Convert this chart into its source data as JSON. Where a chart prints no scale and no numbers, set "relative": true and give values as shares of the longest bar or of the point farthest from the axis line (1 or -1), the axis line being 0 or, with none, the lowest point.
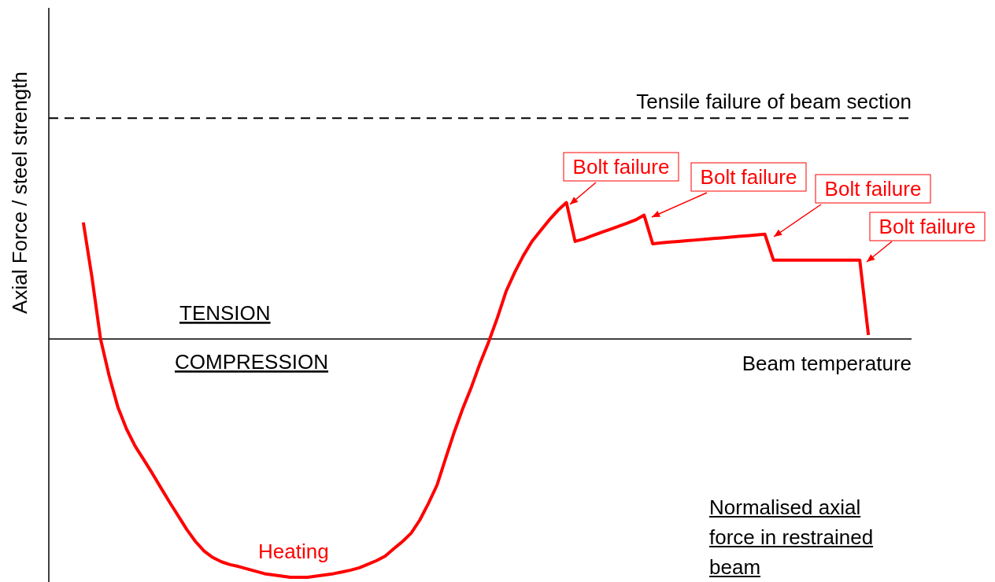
{
  "chart_data": {
    "type": "line",
    "relative": true,
    "xlabel": "Beam temperature",
    "ylabel": "Axial Force / steel strength",
    "marker": "none",
    "categories": [
      null,
      null,
      null,
      null,
      null,
      null,
      null,
      null,
      null,
      null,
      null,
      null,
      null,
      null,
      null,
      null,
      null,
      null,
      null,
      null,
      null,
      null,
      null,
      null,
      null,
      null,
      null,
      null,
      null,
      null,
      null,
      null,
      null,
      null,
      null,
      null,
      null,
      null,
      null,
      null,
      null,
      null,
      null,
      null,
      null,
      null,
      null,
      null,
      null,
      null,
      null,
      null,
      null,
      null,
      null,
      null,
      null,
      null,
      null,
      null,
      null,
      null,
      null,
      null,
      null,
      null,
      null,
      null,
      null,
      null,
      null,
      null,
      null,
      null,
      null,
      null,
      null,
      null,
      null,
      null,
      null,
      null,
      null,
      null,
      null,
      null,
      null,
      null,
      null,
      null,
      null,
      null
    ],
    "series": [
      {
        "color": "#ff0000",
        "values": [
          0.49,
          0.26,
          0,
          -0.155,
          -0.285,
          -0.377,
          -0.449,
          -0.506,
          -0.564,
          -0.625,
          -0.685,
          -0.742,
          -0.8,
          -0.85,
          -0.89,
          -0.917,
          -0.935,
          -0.947,
          -0.955,
          -0.965,
          -0.975,
          -0.985,
          -0.99,
          -0.995,
          -1,
          -1,
          -1,
          -0.995,
          -0.99,
          -0.985,
          -0.978,
          -0.97,
          -0.96,
          -0.945,
          -0.93,
          -0.911,
          -0.88,
          -0.85,
          -0.815,
          -0.76,
          -0.69,
          -0.613,
          -0.5,
          -0.39,
          -0.29,
          -0.2,
          -0.1,
          -0.01,
          0.09,
          0.2,
          0.28,
          0.35,
          0.41,
          0.455,
          0.5,
          0.54,
          0.573,
          0.41,
          0.42,
          0.434,
          0.447,
          0.46,
          0.473,
          0.486,
          0.5,
          0.52,
          0.4,
          0.404,
          0.407,
          0.41,
          0.413,
          0.416,
          0.419,
          0.422,
          0.425,
          0.428,
          0.431,
          0.434,
          0.437,
          0.44,
          0.331,
          0.331,
          0.331,
          0.331,
          0.331,
          0.331,
          0.331,
          0.331,
          0.331,
          0.331,
          0.331,
          0.017
        ]
      }
    ],
    "ref_lines": [
      {
        "axis": "y",
        "value": 0.927,
        "label": "Tensile failure of beam section",
        "color": "#000000",
        "line_style": "dashed"
      }
    ],
    "annotations": [
      "Bolt failure",
      "Bolt failure",
      "Bolt failure",
      "Bolt failure",
      "TENSION",
      "COMPRESSION",
      "Heating",
      "Normalised axial force in restrained beam"
    ]
  }
}
